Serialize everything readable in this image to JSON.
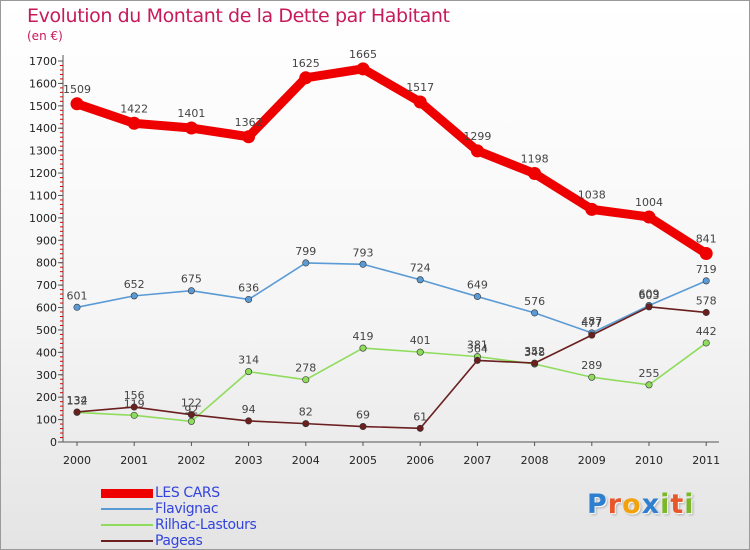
{
  "title": "Evolution du Montant de la Dette par Habitant",
  "unit_label": "(en €)",
  "logo": {
    "letters": [
      "P",
      "r",
      "o",
      "x",
      "i",
      "t",
      "i"
    ],
    "colors": [
      "#2f7fd0",
      "#e8562a",
      "#f2a20d",
      "#2f7fd0",
      "#7ab827",
      "#e8562a",
      "#7ab827"
    ]
  },
  "chart_data": {
    "type": "line",
    "title": "Evolution du Montant de la Dette par Habitant",
    "ylabel": "(en €)",
    "xlabel": "",
    "x": [
      "2000",
      "2001",
      "2002",
      "2003",
      "2004",
      "2005",
      "2006",
      "2007",
      "2008",
      "2009",
      "2010",
      "2011"
    ],
    "ylim": [
      0,
      1700
    ],
    "yticks": [
      0,
      100,
      200,
      300,
      400,
      500,
      600,
      700,
      800,
      900,
      1000,
      1100,
      1200,
      1300,
      1400,
      1500,
      1600,
      1700
    ],
    "grid": false,
    "legend_position": "bottom-left",
    "series": [
      {
        "name": "LES CARS",
        "color": "#ee0000",
        "emphasis": "thick",
        "values": [
          1509,
          1422,
          1401,
          1362,
          1625,
          1665,
          1517,
          1299,
          1198,
          1038,
          1004,
          841
        ]
      },
      {
        "name": "Flavignac",
        "color": "#5b9bd5",
        "emphasis": "normal",
        "values": [
          601,
          652,
          675,
          636,
          799,
          793,
          724,
          649,
          576,
          487,
          609,
          719
        ]
      },
      {
        "name": "Rilhac-Lastours",
        "color": "#8fdc5c",
        "emphasis": "normal",
        "values": [
          132,
          119,
          92,
          314,
          278,
          419,
          401,
          381,
          348,
          289,
          255,
          442
        ]
      },
      {
        "name": "Pageas",
        "color": "#6b1f1f",
        "emphasis": "normal",
        "values": [
          134,
          156,
          122,
          94,
          82,
          69,
          61,
          364,
          352,
          477,
          603,
          578
        ]
      }
    ]
  }
}
